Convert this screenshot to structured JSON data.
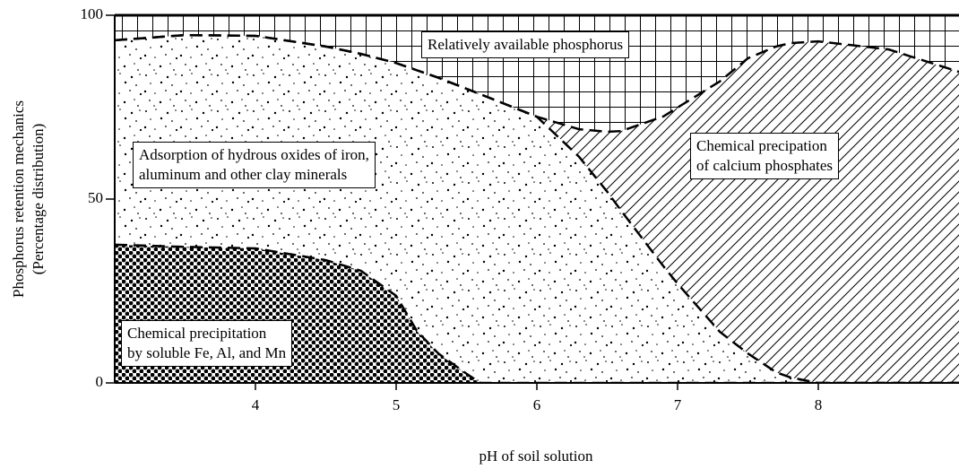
{
  "chart_data": {
    "type": "stacked_area",
    "xlabel": "pH of soil solution",
    "ylabel": [
      "Phosphorus retention mechanics",
      "(Percentage distribution)"
    ],
    "x": [
      3,
      3.5,
      4,
      4.5,
      4.75,
      5,
      5.15,
      5.3,
      5.5,
      5.6,
      6,
      6.3,
      6.5,
      6.6,
      6.9,
      7,
      7.3,
      7.5,
      7.7,
      7.8,
      8,
      8.5,
      9
    ],
    "xlim": [
      3,
      9
    ],
    "xticks": [
      4,
      5,
      6,
      7,
      8
    ],
    "ylim": [
      0,
      100
    ],
    "yticks": [
      0,
      50,
      100
    ],
    "series": [
      {
        "name": "Chemical precipitation\nby soluble Fe, Al, and Mn",
        "values": [
          37.6,
          37,
          36.6,
          33.4,
          30.5,
          23.7,
          14,
          8,
          2.5,
          0,
          0,
          0,
          0,
          0,
          0,
          0,
          0,
          0,
          0,
          0,
          0,
          0,
          0
        ]
      },
      {
        "name": "Adsorption of hydrous oxides of iron,\naluminum and other clay minerals",
        "values": [
          55.6,
          57.6,
          57.8,
          58.1,
          59,
          63.3,
          71,
          75,
          77.5,
          78.5,
          72.4,
          61.5,
          52,
          46.8,
          31.7,
          27,
          13.9,
          8,
          2.9,
          1.5,
          0,
          0,
          0
        ]
      },
      {
        "name": "Chemical precipation\nof calcium phosphates",
        "values": [
          0,
          0,
          0,
          0,
          0,
          0,
          0,
          0,
          0,
          0,
          0,
          7.5,
          16.3,
          21.7,
          40.8,
          47.9,
          68.1,
          80.3,
          88.6,
          90.9,
          92.9,
          90.7,
          84.6
        ]
      },
      {
        "name": "Relatively available phosphorus",
        "values": [
          6.8,
          5.4,
          5.6,
          8.5,
          10.5,
          13,
          15,
          17,
          20,
          21.5,
          27.6,
          31,
          31.7,
          31.5,
          27.5,
          25.1,
          18,
          11.7,
          8.5,
          7.6,
          7.1,
          9.3,
          15.4
        ]
      }
    ]
  }
}
